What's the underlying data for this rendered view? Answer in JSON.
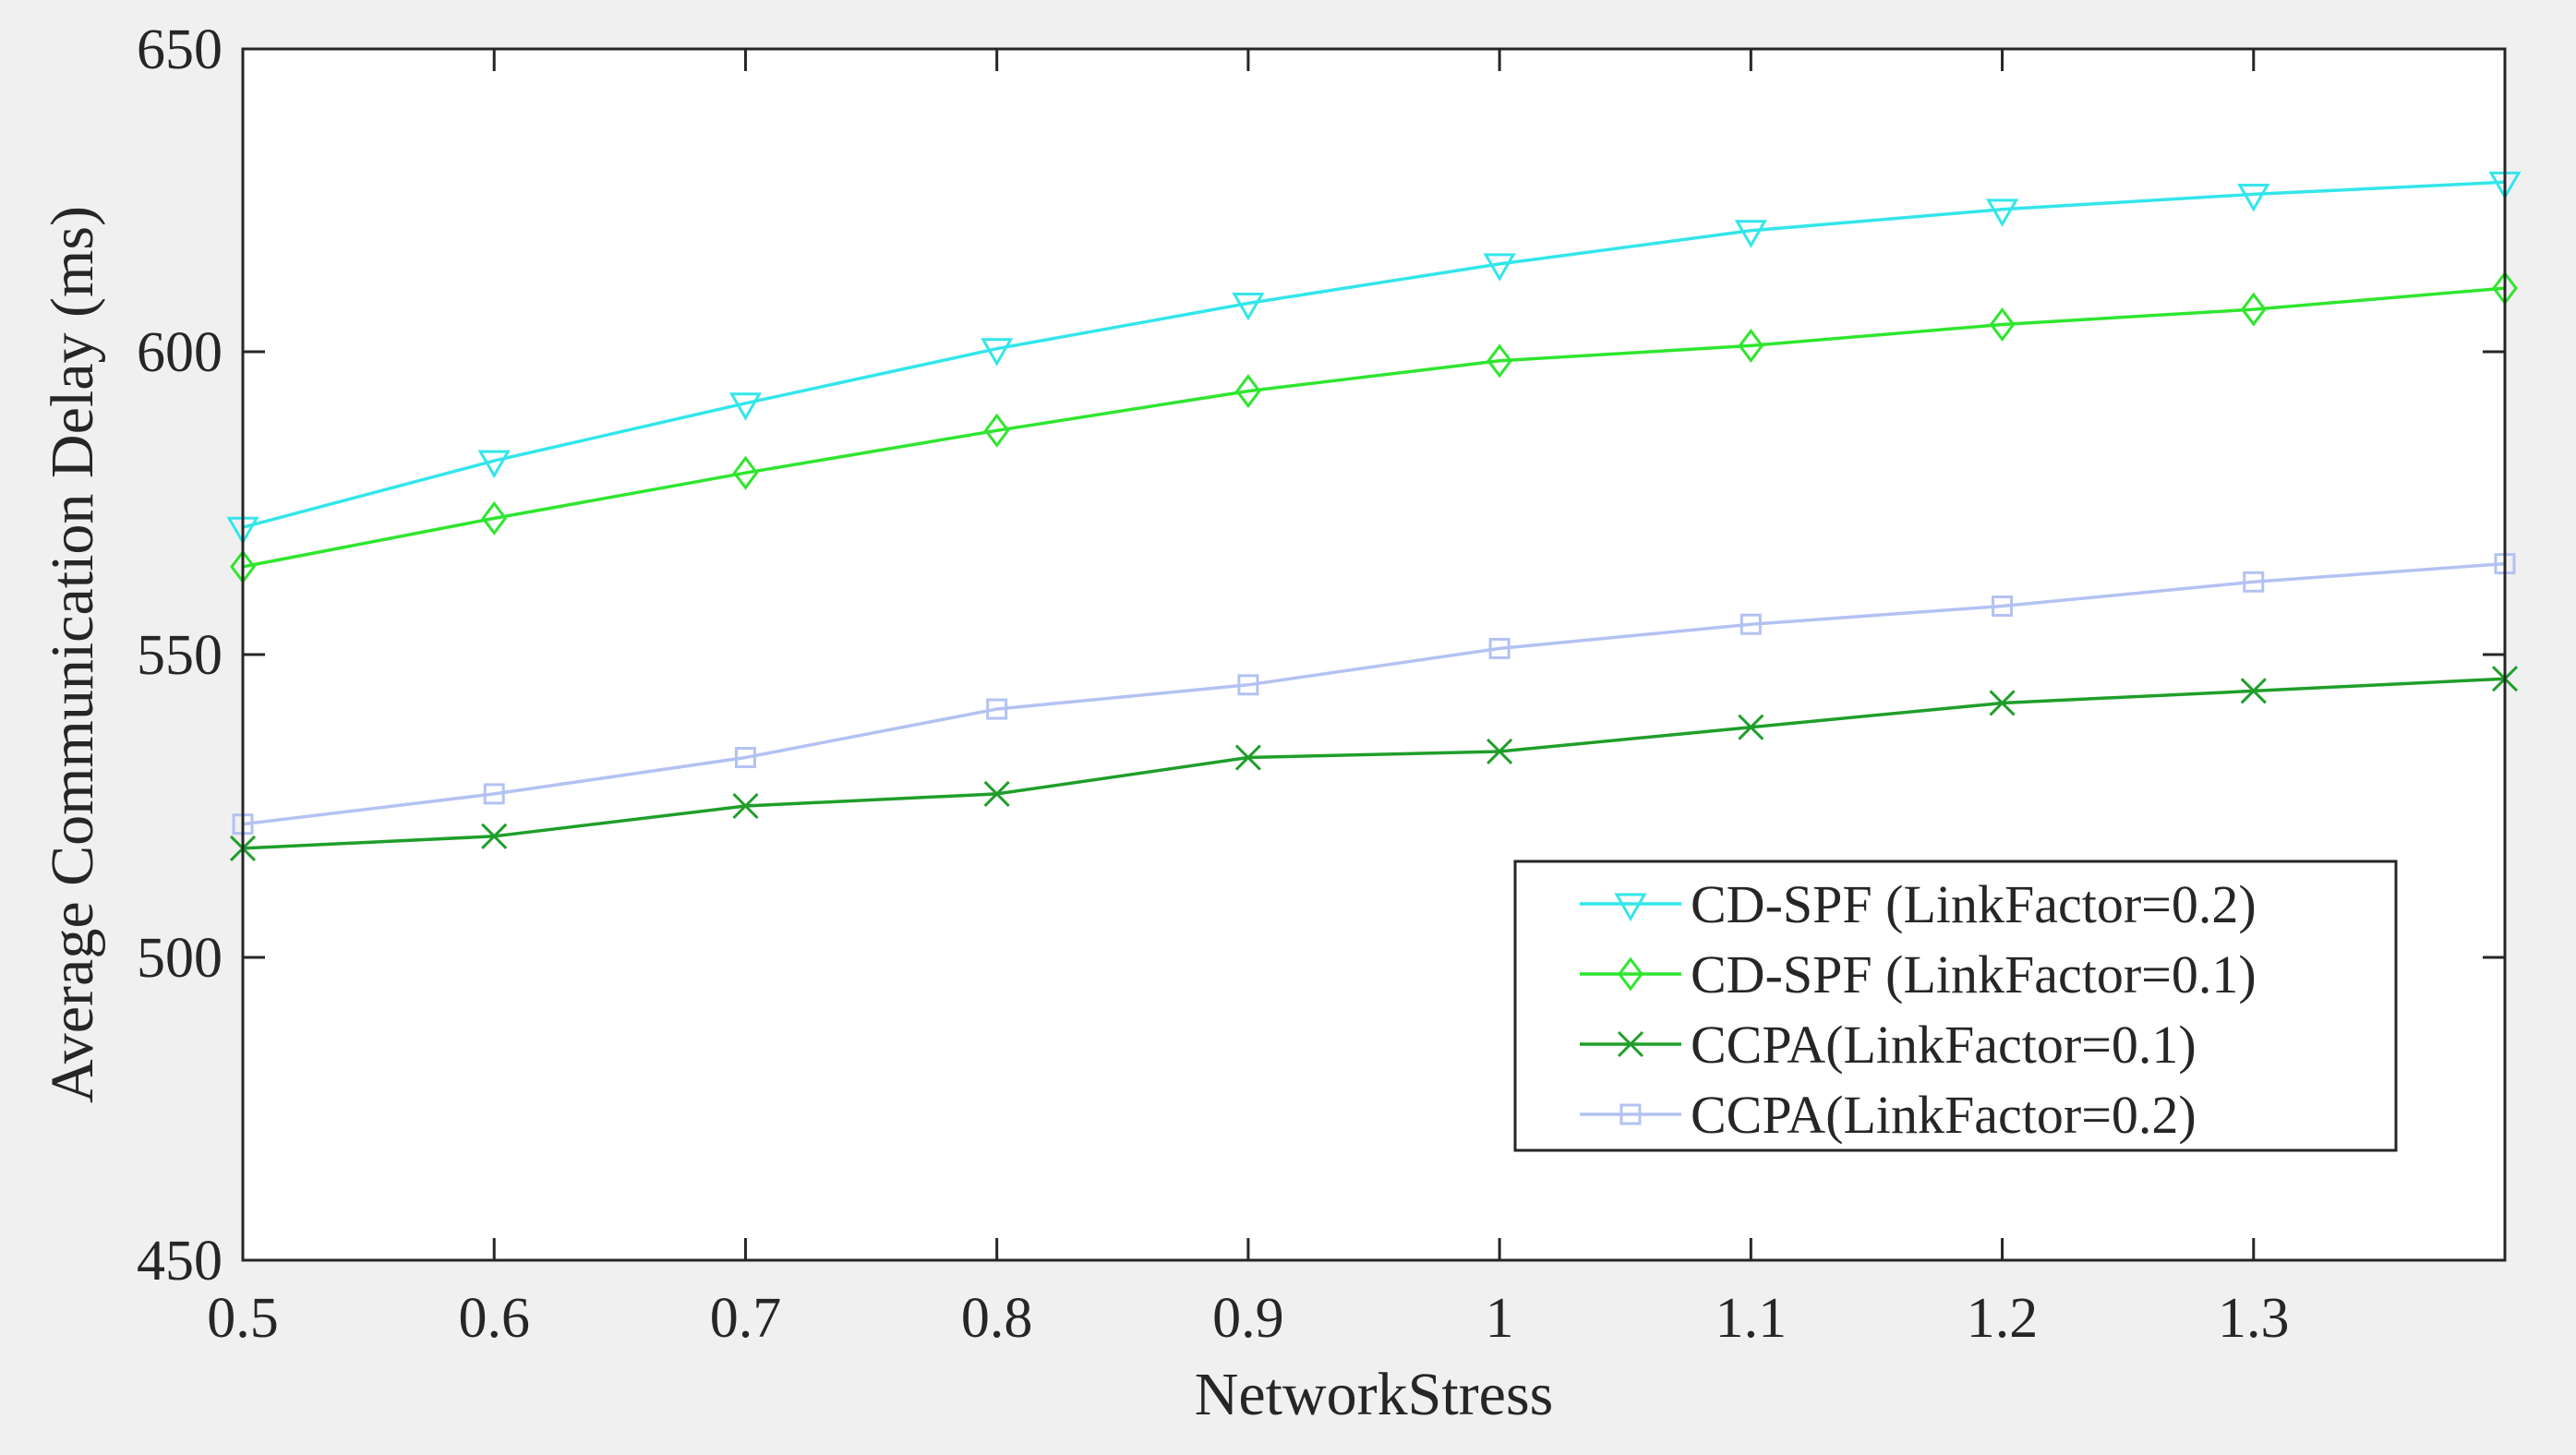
{
  "chart_data": {
    "type": "line",
    "title": "",
    "xlabel": "NetworkStress",
    "ylabel": "Average  Communication Delay (ms)",
    "xlim": [
      0.5,
      1.4
    ],
    "ylim": [
      450,
      650
    ],
    "xticks": [
      0.5,
      0.6,
      0.7,
      0.8,
      0.9,
      1,
      1.1,
      1.2,
      1.3
    ],
    "xtick_labels": [
      "0.5",
      "0.6",
      "0.7",
      "0.8",
      "0.9",
      "1",
      "1.1",
      "1.2",
      "1.3"
    ],
    "yticks": [
      450,
      500,
      550,
      600,
      650
    ],
    "ytick_labels": [
      "450",
      "500",
      "550",
      "600",
      "650"
    ],
    "grid": false,
    "legend_position": "lower-right",
    "x": [
      0.5,
      0.6,
      0.7,
      0.8,
      0.9,
      1.0,
      1.1,
      1.2,
      1.3,
      1.4
    ],
    "series": [
      {
        "name": "CD-SPF (LinkFactor=0.2)",
        "color": "#33e6ea",
        "marker": "triangle-down",
        "values": [
          571,
          582,
          591.5,
          600.5,
          608,
          614.5,
          620,
          623.5,
          626,
          628
        ]
      },
      {
        "name": "CD-SPF (LinkFactor=0.1)",
        "color": "#2ee62e",
        "marker": "diamond",
        "values": [
          564.5,
          572.5,
          580,
          587,
          593.5,
          598.5,
          601,
          604.5,
          607,
          610.5
        ]
      },
      {
        "name": "CCPA(LinkFactor=0.1)",
        "color": "#1f9e2a",
        "marker": "x",
        "values": [
          518,
          520,
          525,
          527,
          533,
          534,
          538,
          542,
          544,
          546
        ]
      },
      {
        "name": "CCPA(LinkFactor=0.2)",
        "color": "#b3c2f2",
        "marker": "square",
        "values": [
          522,
          527,
          533,
          541,
          545,
          551,
          555,
          558,
          562,
          565
        ]
      }
    ]
  }
}
